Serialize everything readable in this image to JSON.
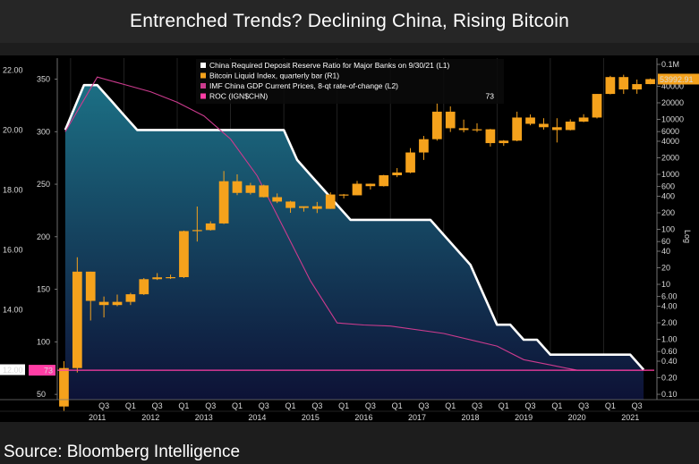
{
  "title": "Entrenched Trends? Declining China, Rising Bitcoin",
  "footer": "Source: Bloomberg Intelligence",
  "colors": {
    "bg": "#000000",
    "area_top": "#1c6f84",
    "area_bottom": "#0d1236",
    "rrr_line": "#ffffff",
    "gdp_line": "#cc3b8e",
    "bitcoin_up": "#f5a21c",
    "roc": "#ff3ea5"
  },
  "chart_data": {
    "type": "candlestick-area-line",
    "title": "Entrenched Trends? Declining China, Rising Bitcoin",
    "legend": [
      {
        "label": "China Required Deposit Reserve Ratio for Major Banks on 9/30/21 (L1)",
        "value": "",
        "color": "#ffffff"
      },
      {
        "label": "Bitcoin Liquid Index, quarterly bar (R1)",
        "value": "",
        "color": "#f5a21c"
      },
      {
        "label": "IMF China GDP Current Prices, 8-qt rate-of-change (L2)",
        "value": "",
        "color": "#cc3b8e"
      },
      {
        "label": "ROC (IGN$CHN)",
        "value": "73",
        "color": "#ff3ea5"
      }
    ],
    "left_axis_1": {
      "ticks": [
        "22.00",
        "20.00",
        "18.00",
        "16.00",
        "14.00",
        "12.00"
      ],
      "range": [
        11,
        22.4
      ],
      "current_label": "12.00"
    },
    "left_axis_2": {
      "ticks": [
        "350",
        "300",
        "250",
        "200",
        "150",
        "100",
        "50"
      ],
      "range": [
        45,
        370
      ],
      "current_label": "73"
    },
    "right_axis": {
      "scale": "log",
      "label": "Log",
      "ticks": [
        "0.1M",
        "40000",
        "20000",
        "10000",
        "6000",
        "4000",
        "2000",
        "1000",
        "600",
        "400",
        "200",
        "100",
        "60",
        "40",
        "20",
        "10",
        "6.00",
        "4.00",
        "2.00",
        "1.00",
        "0.60",
        "0.40",
        "0.20",
        "0.10"
      ],
      "range": [
        0.08,
        130000
      ],
      "current_label": "53992.91"
    },
    "x_years": [
      "2011",
      "2012",
      "2013",
      "2014",
      "2015",
      "2016",
      "2017",
      "2018",
      "2019",
      "2020",
      "2021"
    ],
    "x_quarter_labels": [
      "Q3",
      "Q1",
      "Q3",
      "Q1",
      "Q3",
      "Q1",
      "Q3",
      "Q1",
      "Q3",
      "Q1",
      "Q3",
      "Q1",
      "Q3",
      "Q1",
      "Q3",
      "Q1",
      "Q3",
      "Q1",
      "Q3",
      "Q1",
      "Q3"
    ],
    "rrr_series": [
      {
        "t": 2010.9,
        "v": 20.0
      },
      {
        "t": 2011.25,
        "v": 21.5
      },
      {
        "t": 2011.5,
        "v": 21.5
      },
      {
        "t": 2011.75,
        "v": 21.0
      },
      {
        "t": 2012.0,
        "v": 20.5
      },
      {
        "t": 2012.25,
        "v": 20.0
      },
      {
        "t": 2013.0,
        "v": 20.0
      },
      {
        "t": 2014.0,
        "v": 20.0
      },
      {
        "t": 2015.0,
        "v": 20.0
      },
      {
        "t": 2015.25,
        "v": 19.0
      },
      {
        "t": 2015.5,
        "v": 18.5
      },
      {
        "t": 2015.75,
        "v": 18.0
      },
      {
        "t": 2016.0,
        "v": 17.5
      },
      {
        "t": 2016.25,
        "v": 17.0
      },
      {
        "t": 2017.0,
        "v": 17.0
      },
      {
        "t": 2017.75,
        "v": 17.0
      },
      {
        "t": 2018.0,
        "v": 16.5
      },
      {
        "t": 2018.25,
        "v": 16.0
      },
      {
        "t": 2018.5,
        "v": 15.5
      },
      {
        "t": 2018.75,
        "v": 14.5
      },
      {
        "t": 2019.0,
        "v": 13.5
      },
      {
        "t": 2019.25,
        "v": 13.5
      },
      {
        "t": 2019.5,
        "v": 13.0
      },
      {
        "t": 2019.75,
        "v": 13.0
      },
      {
        "t": 2020.0,
        "v": 12.5
      },
      {
        "t": 2021.5,
        "v": 12.5
      },
      {
        "t": 2021.75,
        "v": 12.0
      }
    ],
    "gdp_roc_series": [
      {
        "t": 2010.9,
        "v": 300
      },
      {
        "t": 2011.5,
        "v": 352
      },
      {
        "t": 2012.0,
        "v": 345
      },
      {
        "t": 2012.5,
        "v": 338
      },
      {
        "t": 2013.0,
        "v": 328
      },
      {
        "t": 2013.5,
        "v": 315
      },
      {
        "t": 2014.0,
        "v": 293
      },
      {
        "t": 2014.5,
        "v": 258
      },
      {
        "t": 2015.0,
        "v": 208
      },
      {
        "t": 2015.5,
        "v": 158
      },
      {
        "t": 2016.0,
        "v": 118
      },
      {
        "t": 2016.5,
        "v": 116
      },
      {
        "t": 2017.0,
        "v": 115
      },
      {
        "t": 2018.0,
        "v": 108
      },
      {
        "t": 2019.0,
        "v": 96
      },
      {
        "t": 2019.5,
        "v": 83
      },
      {
        "t": 2020.0,
        "v": 78
      },
      {
        "t": 2020.5,
        "v": 73
      },
      {
        "t": 2021.8,
        "v": 73
      }
    ],
    "bitcoin_candles": [
      {
        "t": 2010.875,
        "o": 0.06,
        "h": 0.4,
        "l": 0.05,
        "c": 0.3
      },
      {
        "t": 2011.125,
        "o": 0.3,
        "h": 31,
        "l": 0.25,
        "c": 17
      },
      {
        "t": 2011.375,
        "o": 17,
        "h": 17,
        "l": 2.2,
        "c": 5
      },
      {
        "t": 2011.625,
        "o": 4.8,
        "h": 6,
        "l": 2.5,
        "c": 4.2
      },
      {
        "t": 2011.875,
        "o": 4.2,
        "h": 6.5,
        "l": 4,
        "c": 4.8
      },
      {
        "t": 2012.125,
        "o": 4.8,
        "h": 7,
        "l": 4.2,
        "c": 6.6
      },
      {
        "t": 2012.375,
        "o": 6.6,
        "h": 13,
        "l": 6.4,
        "c": 12.4
      },
      {
        "t": 2012.625,
        "o": 12.4,
        "h": 16,
        "l": 12,
        "c": 13.4
      },
      {
        "t": 2012.875,
        "o": 13.4,
        "h": 15,
        "l": 12.5,
        "c": 13.5
      },
      {
        "t": 2013.125,
        "o": 13.5,
        "h": 95,
        "l": 13,
        "c": 93
      },
      {
        "t": 2013.375,
        "o": 93,
        "h": 260,
        "l": 60,
        "c": 97
      },
      {
        "t": 2013.625,
        "o": 97,
        "h": 140,
        "l": 95,
        "c": 128
      },
      {
        "t": 2013.875,
        "o": 128,
        "h": 1150,
        "l": 125,
        "c": 750
      },
      {
        "t": 2014.125,
        "o": 750,
        "h": 1000,
        "l": 420,
        "c": 460
      },
      {
        "t": 2014.375,
        "o": 460,
        "h": 700,
        "l": 430,
        "c": 630
      },
      {
        "t": 2014.625,
        "o": 630,
        "h": 650,
        "l": 380,
        "c": 385
      },
      {
        "t": 2014.875,
        "o": 385,
        "h": 450,
        "l": 300,
        "c": 320
      },
      {
        "t": 2015.125,
        "o": 320,
        "h": 330,
        "l": 200,
        "c": 245
      },
      {
        "t": 2015.375,
        "o": 245,
        "h": 255,
        "l": 210,
        "c": 263
      },
      {
        "t": 2015.625,
        "o": 263,
        "h": 315,
        "l": 198,
        "c": 236
      },
      {
        "t": 2015.875,
        "o": 236,
        "h": 470,
        "l": 235,
        "c": 430
      },
      {
        "t": 2016.125,
        "o": 430,
        "h": 440,
        "l": 365,
        "c": 416
      },
      {
        "t": 2016.375,
        "o": 416,
        "h": 760,
        "l": 415,
        "c": 675
      },
      {
        "t": 2016.625,
        "o": 675,
        "h": 680,
        "l": 530,
        "c": 610
      },
      {
        "t": 2016.875,
        "o": 610,
        "h": 980,
        "l": 600,
        "c": 963
      },
      {
        "t": 2017.125,
        "o": 963,
        "h": 1300,
        "l": 890,
        "c": 1080
      },
      {
        "t": 2017.375,
        "o": 1080,
        "h": 3000,
        "l": 1050,
        "c": 2500
      },
      {
        "t": 2017.625,
        "o": 2500,
        "h": 5000,
        "l": 1830,
        "c": 4360
      },
      {
        "t": 2017.875,
        "o": 4360,
        "h": 19800,
        "l": 4100,
        "c": 13800
      },
      {
        "t": 2018.125,
        "o": 13800,
        "h": 17200,
        "l": 5900,
        "c": 6900
      },
      {
        "t": 2018.375,
        "o": 6900,
        "h": 9900,
        "l": 5800,
        "c": 6400
      },
      {
        "t": 2018.625,
        "o": 6400,
        "h": 8500,
        "l": 5900,
        "c": 6600
      },
      {
        "t": 2018.875,
        "o": 6600,
        "h": 6700,
        "l": 3200,
        "c": 3700
      },
      {
        "t": 2019.125,
        "o": 3700,
        "h": 4200,
        "l": 3300,
        "c": 4100
      },
      {
        "t": 2019.375,
        "o": 4100,
        "h": 13800,
        "l": 4000,
        "c": 10800
      },
      {
        "t": 2019.625,
        "o": 10800,
        "h": 12300,
        "l": 7800,
        "c": 8300
      },
      {
        "t": 2019.875,
        "o": 8300,
        "h": 10500,
        "l": 6500,
        "c": 7200
      },
      {
        "t": 2020.125,
        "o": 7200,
        "h": 10500,
        "l": 3800,
        "c": 6400
      },
      {
        "t": 2020.375,
        "o": 6400,
        "h": 10000,
        "l": 6300,
        "c": 9100
      },
      {
        "t": 2020.625,
        "o": 9100,
        "h": 12400,
        "l": 8900,
        "c": 10800
      },
      {
        "t": 2020.875,
        "o": 10800,
        "h": 29000,
        "l": 10400,
        "c": 29000
      },
      {
        "t": 2021.125,
        "o": 29000,
        "h": 61800,
        "l": 28500,
        "c": 58800
      },
      {
        "t": 2021.375,
        "o": 58800,
        "h": 64800,
        "l": 29000,
        "c": 35000
      },
      {
        "t": 2021.625,
        "o": 35000,
        "h": 52900,
        "l": 29200,
        "c": 43800
      },
      {
        "t": 2021.875,
        "o": 43800,
        "h": 55500,
        "l": 43500,
        "c": 53992.91
      }
    ]
  }
}
